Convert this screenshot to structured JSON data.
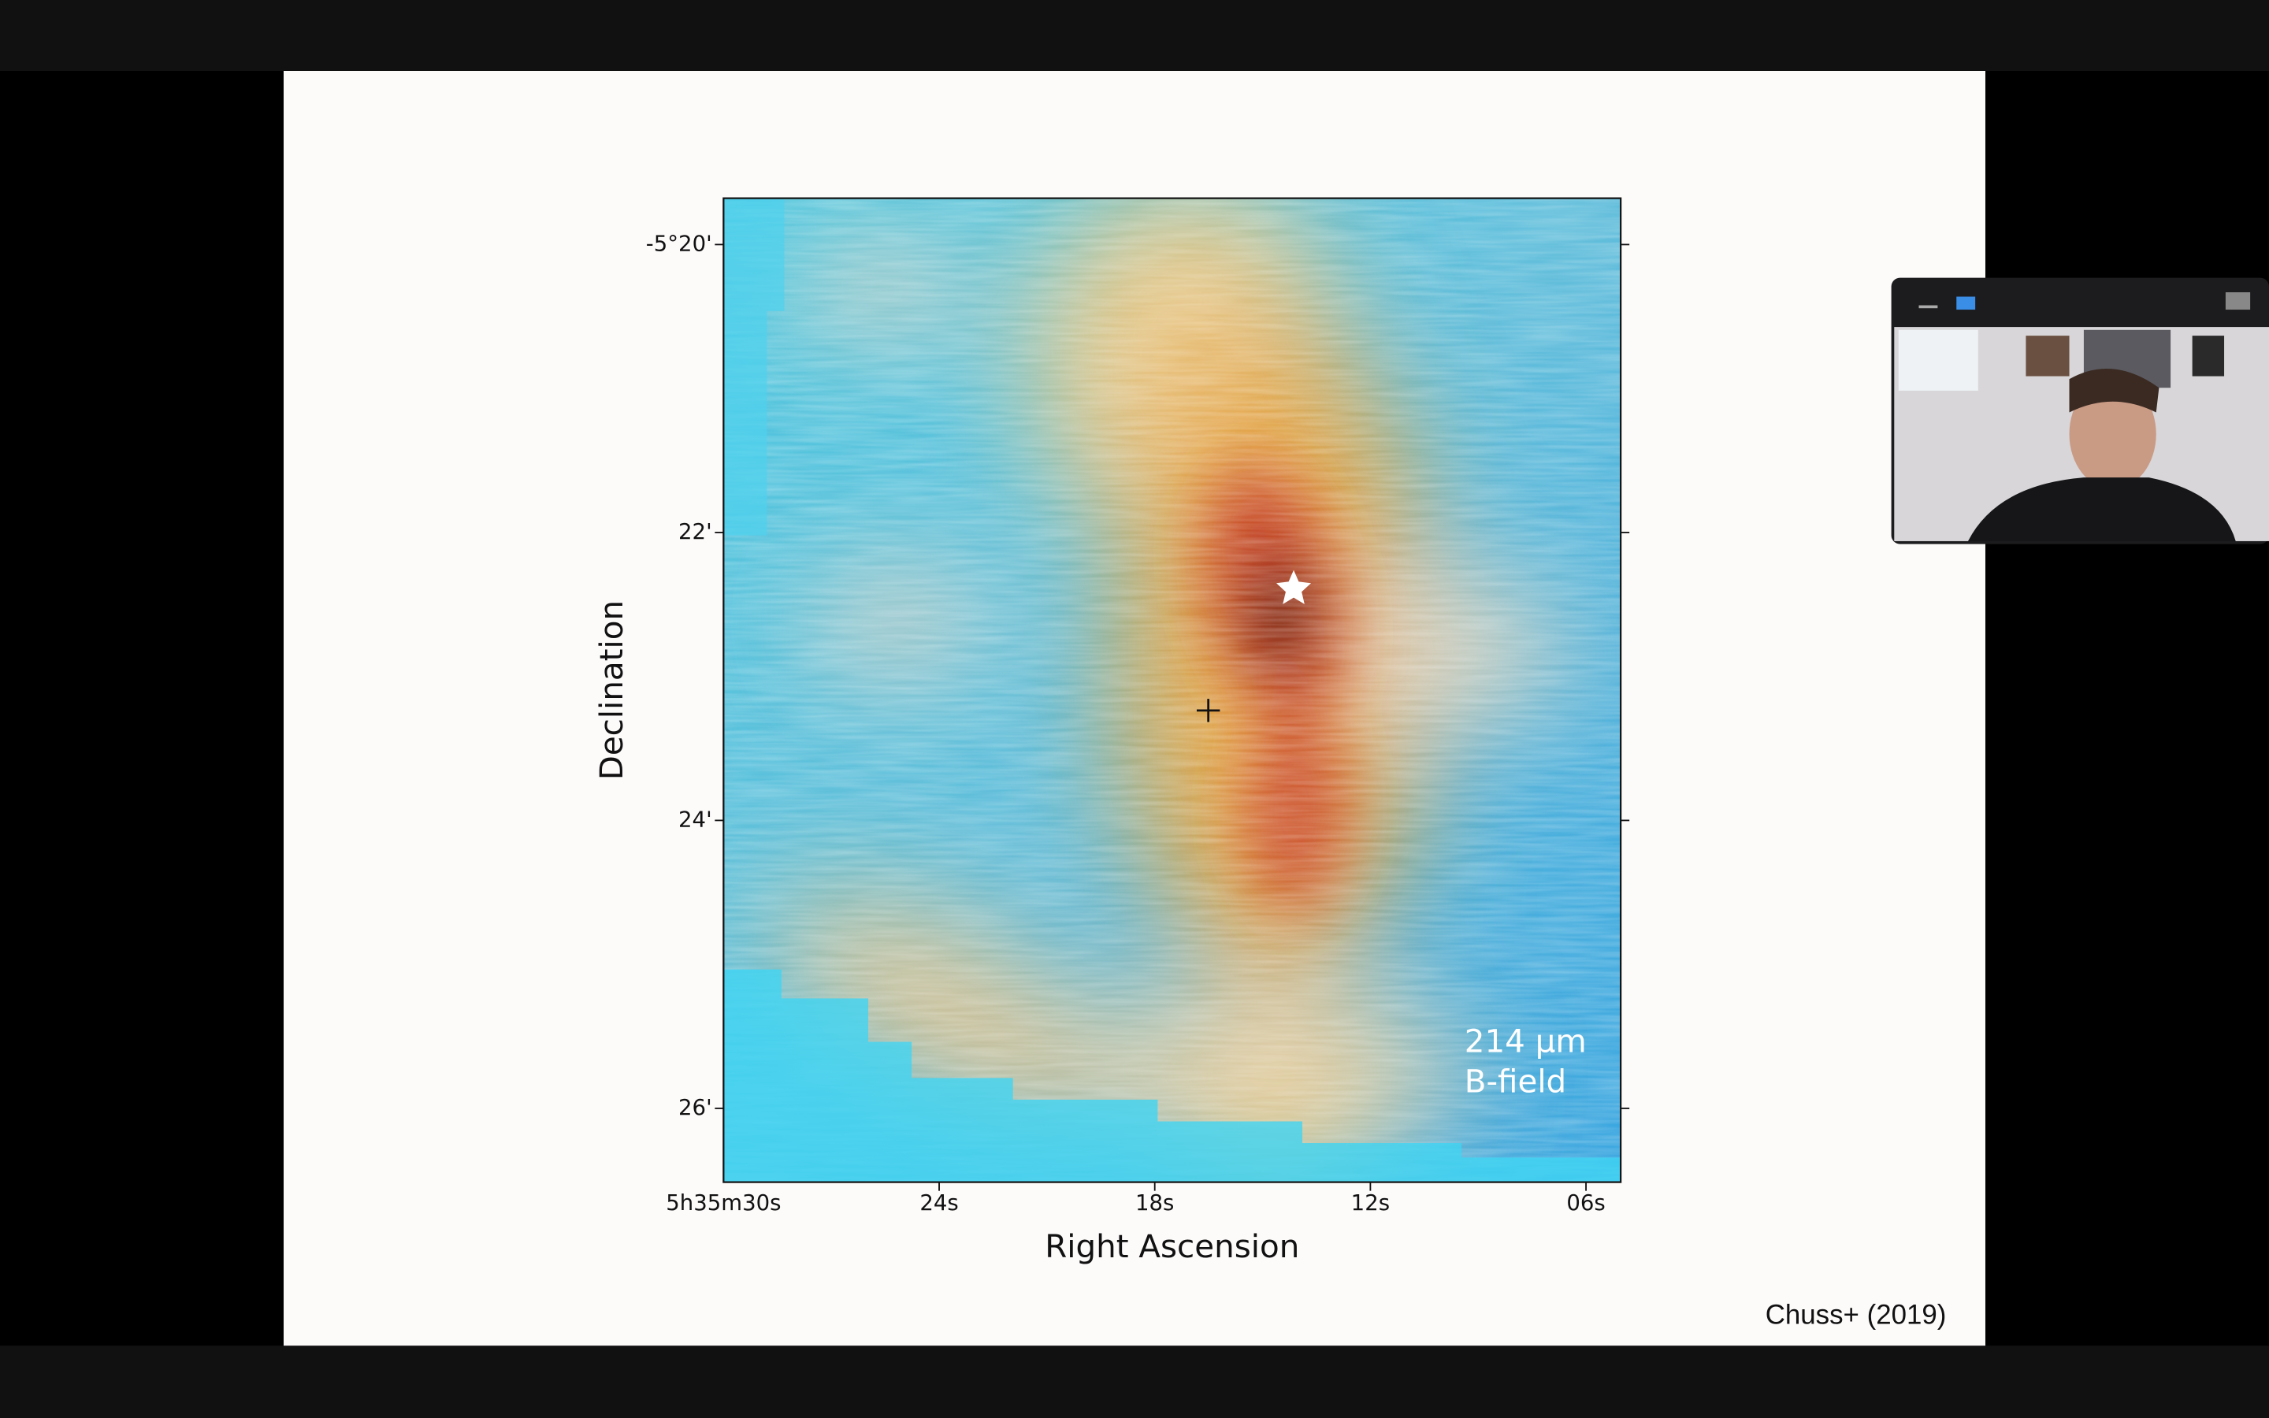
{
  "slide": {
    "figure": {
      "y_ticks": [
        "-5°20'",
        "22'",
        "24'",
        "26'"
      ],
      "x_ticks": [
        "5h35m30s",
        "24s",
        "18s",
        "12s",
        "06s"
      ],
      "x_label": "Right Ascension",
      "y_label": "Declination",
      "annotation": [
        "214 μm",
        "B-field"
      ]
    },
    "citation": "Chuss+ (2019)"
  }
}
